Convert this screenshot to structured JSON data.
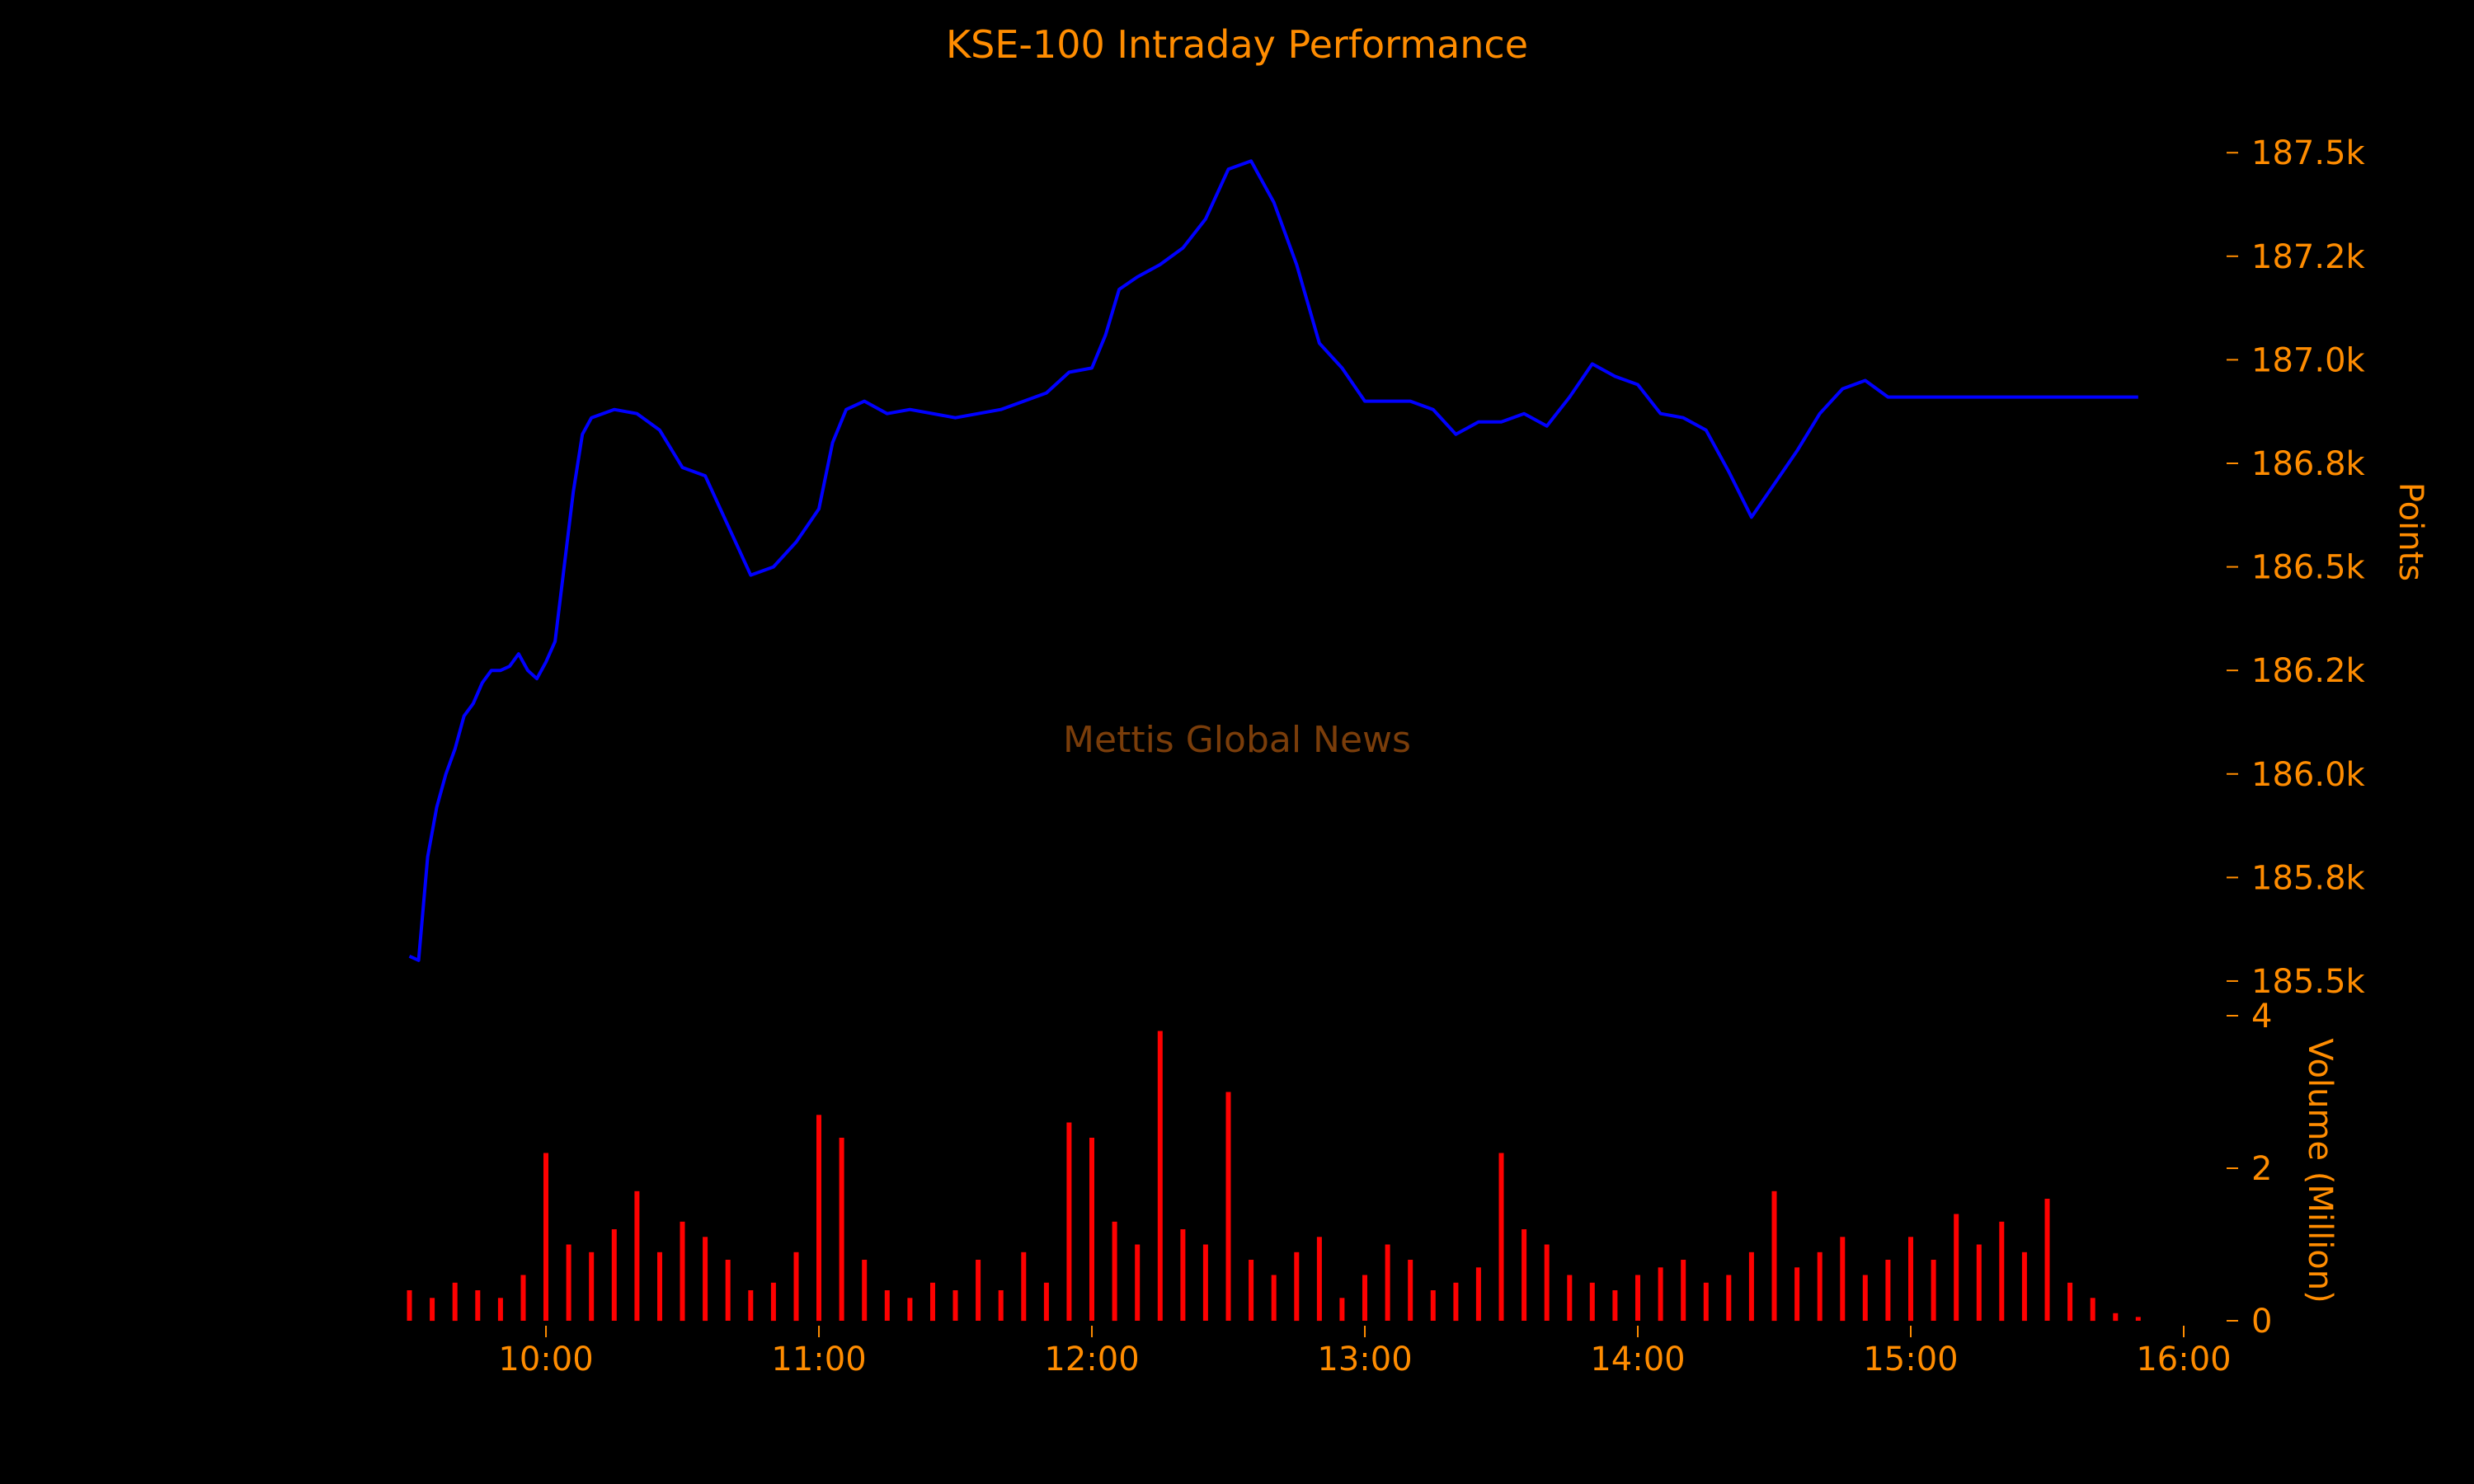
{
  "chart_data": {
    "title": "KSE-100 Intraday Performance",
    "watermark": "Mettis Global News",
    "colors": {
      "background": "#000000",
      "text": "#ff8c00",
      "price_line": "#0000ff",
      "volume_bars": "#ff0000",
      "watermark": "#7a3d0a"
    },
    "panels": [
      {
        "id": "price",
        "type": "line",
        "ylabel": "Points",
        "yaxis_side": "right",
        "ylim": [
          185480,
          187590
        ],
        "yticks": [
          185500,
          185750,
          186000,
          186250,
          186500,
          186750,
          187000,
          187250,
          187500
        ],
        "ytick_labels": [
          "185.5k",
          "185.8k",
          "186.0k",
          "186.2k",
          "186.5k",
          "186.8k",
          "187.0k",
          "187.2k",
          "187.5k"
        ],
        "series": [
          {
            "x": [
              "09:30",
              "09:32",
              "09:34",
              "09:36",
              "09:38",
              "09:40",
              "09:42",
              "09:44",
              "09:46",
              "09:48",
              "09:50",
              "09:52",
              "09:54",
              "09:56",
              "09:58",
              "10:00",
              "10:02",
              "10:04",
              "10:06",
              "10:08",
              "10:10",
              "10:15",
              "10:20",
              "10:25",
              "10:30",
              "10:35",
              "10:40",
              "10:45",
              "10:50",
              "10:55",
              "11:00",
              "11:03",
              "11:06",
              "11:10",
              "11:15",
              "11:20",
              "11:30",
              "11:40",
              "11:50",
              "11:55",
              "12:00",
              "12:03",
              "12:06",
              "12:10",
              "12:15",
              "12:20",
              "12:25",
              "12:30",
              "12:35",
              "12:40",
              "12:45",
              "12:50",
              "12:55",
              "13:00",
              "13:05",
              "13:10",
              "13:15",
              "13:20",
              "13:25",
              "13:30",
              "13:35",
              "13:40",
              "13:45",
              "13:50",
              "13:55",
              "14:00",
              "14:05",
              "14:10",
              "14:15",
              "14:20",
              "14:25",
              "14:30",
              "14:35",
              "14:40",
              "14:45",
              "14:50",
              "14:55",
              "15:00",
              "15:05",
              "15:10",
              "15:15",
              "15:20",
              "15:25",
              "15:30",
              "15:35",
              "15:40",
              "15:45",
              "15:50"
            ],
            "y": [
              185560,
              185550,
              185800,
              185920,
              186000,
              186060,
              186140,
              186170,
              186220,
              186250,
              186250,
              186260,
              186290,
              186250,
              186230,
              186270,
              186320,
              186500,
              186680,
              186820,
              186860,
              186880,
              186870,
              186830,
              186740,
              186720,
              186600,
              186480,
              186500,
              186560,
              186640,
              186800,
              186880,
              186900,
              186870,
              186880,
              186860,
              186880,
              186920,
              186970,
              186980,
              187060,
              187170,
              187200,
              187230,
              187270,
              187340,
              187460,
              187480,
              187380,
              187230,
              187040,
              186980,
              186900,
              186900,
              186900,
              186880,
              186820,
              186850,
              186850,
              186870,
              186840,
              186910,
              186990,
              186960,
              186940,
              186870,
              186860,
              186830,
              186730,
              186620,
              186700,
              186780,
              186870,
              186930,
              186950,
              186910,
              186910,
              186910,
              186910,
              186910,
              186910,
              186910,
              186910,
              186910,
              186910,
              186910,
              186910
            ]
          }
        ]
      },
      {
        "id": "volume",
        "type": "bar",
        "ylabel": "Volume (Million)",
        "yaxis_side": "right",
        "ylim": [
          0,
          4
        ],
        "yticks": [
          0,
          2,
          4
        ],
        "ytick_labels": [
          "0",
          "2",
          "4"
        ],
        "series": [
          {
            "x": [
              "09:30",
              "09:35",
              "09:40",
              "09:45",
              "09:50",
              "09:55",
              "10:00",
              "10:05",
              "10:10",
              "10:15",
              "10:20",
              "10:25",
              "10:30",
              "10:35",
              "10:40",
              "10:45",
              "10:50",
              "10:55",
              "11:00",
              "11:05",
              "11:10",
              "11:15",
              "11:20",
              "11:25",
              "11:30",
              "11:35",
              "11:40",
              "11:45",
              "11:50",
              "11:55",
              "12:00",
              "12:05",
              "12:10",
              "12:15",
              "12:20",
              "12:25",
              "12:30",
              "12:35",
              "12:40",
              "12:45",
              "12:50",
              "12:55",
              "13:00",
              "13:05",
              "13:10",
              "13:15",
              "13:20",
              "13:25",
              "13:30",
              "13:35",
              "13:40",
              "13:45",
              "13:50",
              "13:55",
              "14:00",
              "14:05",
              "14:10",
              "14:15",
              "14:20",
              "14:25",
              "14:30",
              "14:35",
              "14:40",
              "14:45",
              "14:50",
              "14:55",
              "15:00",
              "15:05",
              "15:10",
              "15:15",
              "15:20",
              "15:25",
              "15:30",
              "15:35",
              "15:40",
              "15:45",
              "15:50"
            ],
            "y": [
              0.4,
              0.3,
              0.5,
              0.4,
              0.3,
              0.6,
              2.2,
              1.0,
              0.9,
              1.2,
              1.7,
              0.9,
              1.3,
              1.1,
              0.8,
              0.4,
              0.5,
              0.9,
              2.7,
              2.4,
              0.8,
              0.4,
              0.3,
              0.5,
              0.4,
              0.8,
              0.4,
              0.9,
              0.5,
              2.6,
              2.4,
              1.3,
              1.0,
              3.8,
              1.2,
              1.0,
              3.0,
              0.8,
              0.6,
              0.9,
              1.1,
              0.3,
              0.6,
              1.0,
              0.8,
              0.4,
              0.5,
              0.7,
              2.2,
              1.2,
              1.0,
              0.6,
              0.5,
              0.4,
              0.6,
              0.7,
              0.8,
              0.5,
              0.6,
              0.9,
              1.7,
              0.7,
              0.9,
              1.1,
              0.6,
              0.8,
              1.1,
              0.8,
              1.4,
              1.0,
              1.3,
              0.9,
              1.6,
              0.5,
              0.3,
              0.1,
              0.05
            ]
          }
        ]
      }
    ],
    "xaxis": {
      "xlim": [
        "09:27",
        "16:00"
      ],
      "ticks": [
        "10:00",
        "11:00",
        "12:00",
        "13:00",
        "14:00",
        "15:00",
        "16:00"
      ]
    }
  }
}
